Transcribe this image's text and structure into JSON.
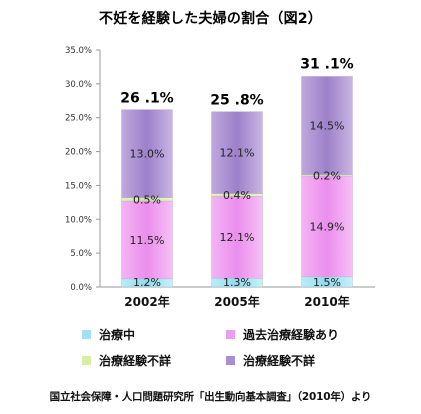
{
  "chart_data": {
    "type": "bar",
    "stacked": true,
    "title": "不妊を経験した夫婦の割合（図2）",
    "categories": [
      "2002年",
      "2005年",
      "2010年"
    ],
    "series": [
      {
        "name": "治療中",
        "values": [
          1.2,
          1.3,
          1.5
        ],
        "labels": [
          "1.2%",
          "1.3%",
          "1.5%"
        ],
        "color": "#9fe3f2"
      },
      {
        "name": "過去治療経験あり",
        "values": [
          11.5,
          12.1,
          14.9
        ],
        "labels": [
          "11.5%",
          "12.1%",
          "14.9%"
        ],
        "color": "#ee9cf0"
      },
      {
        "name": "治療経験不詳",
        "values": [
          0.5,
          0.4,
          0.2
        ],
        "labels": [
          "0.5%",
          "0.4%",
          "0.2%"
        ],
        "color": "#d6efa0"
      },
      {
        "name": "治療経験不詳",
        "values": [
          13.0,
          12.1,
          14.5
        ],
        "labels": [
          "13.0%",
          "12.1%",
          "14.5%"
        ],
        "color": "#a98fd0"
      }
    ],
    "totals": [
      "26 .1%",
      "25 .8%",
      "31 .1%"
    ],
    "total_values": [
      26.1,
      25.8,
      31.1
    ],
    "ylim": [
      0,
      35
    ],
    "yticks": [
      "0.0%",
      "5.0%",
      "10.0%",
      "15.0%",
      "20.0%",
      "25.0%",
      "30.0%",
      "35.0%"
    ],
    "ytick_values": [
      0,
      5,
      10,
      15,
      20,
      25,
      30,
      35
    ],
    "grid": false,
    "legend_position": "bottom"
  },
  "source": "国立社会保障・人口問題研究所「出生動向基本調査」（2010年）より"
}
